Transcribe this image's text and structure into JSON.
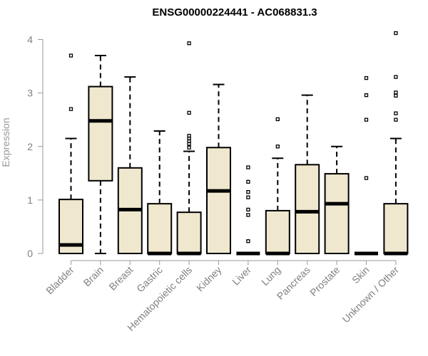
{
  "chart_data": {
    "type": "boxplot",
    "title": "ENSG00000224441 - AC068831.3",
    "xlabel": "",
    "ylabel": "Expression",
    "ylim": [
      0,
      4.1
    ],
    "yticks": [
      0,
      1,
      2,
      3,
      4
    ],
    "grid": false,
    "legend": "none",
    "colors": {
      "box_fill": "#efe8cf",
      "stroke": "#000000",
      "axis": "#999999",
      "label": "#808080"
    },
    "categories": [
      "Bladder",
      "Brain",
      "Breast",
      "Gastric",
      "Hematopoietic cells",
      "Kidney",
      "Liver",
      "Lung",
      "Pancreas",
      "Prostate",
      "Skin",
      "Unknown / Other"
    ],
    "boxes": [
      {
        "category": "Bladder",
        "min": 0,
        "q1": 0,
        "median": 0.16,
        "q3": 1.01,
        "max": 2.15,
        "outliers": [
          2.7,
          3.7
        ]
      },
      {
        "category": "Brain",
        "min": 0,
        "q1": 1.36,
        "median": 2.48,
        "q3": 3.12,
        "max": 3.7,
        "outliers": []
      },
      {
        "category": "Breast",
        "min": 0,
        "q1": 0,
        "median": 0.82,
        "q3": 1.6,
        "max": 3.3,
        "outliers": []
      },
      {
        "category": "Gastric",
        "min": 0,
        "q1": 0,
        "median": 0,
        "q3": 0.93,
        "max": 2.29,
        "outliers": []
      },
      {
        "category": "Hematopoietic cells",
        "min": 0,
        "q1": 0,
        "median": 0,
        "q3": 0.77,
        "max": 1.91,
        "outliers": [
          1.98,
          2.05,
          2.1,
          2.15,
          2.2,
          2.63,
          3.93
        ]
      },
      {
        "category": "Kidney",
        "min": 0,
        "q1": 0,
        "median": 1.17,
        "q3": 1.98,
        "max": 3.16,
        "outliers": []
      },
      {
        "category": "Liver",
        "min": 0,
        "q1": 0,
        "median": 0,
        "q3": 0,
        "max": 0,
        "outliers": [
          0.23,
          0.72,
          0.82,
          1.05,
          1.15,
          1.34,
          1.61
        ]
      },
      {
        "category": "Lung",
        "min": 0,
        "q1": 0,
        "median": 0,
        "q3": 0.8,
        "max": 1.78,
        "outliers": [
          2.0,
          2.51
        ]
      },
      {
        "category": "Pancreas",
        "min": 0,
        "q1": 0,
        "median": 0.78,
        "q3": 1.66,
        "max": 2.96,
        "outliers": []
      },
      {
        "category": "Prostate",
        "min": 0,
        "q1": 0,
        "median": 0.93,
        "q3": 1.49,
        "max": 2.0,
        "outliers": []
      },
      {
        "category": "Skin",
        "min": 0,
        "q1": 0,
        "median": 0,
        "q3": 0,
        "max": 0,
        "outliers": [
          1.41,
          2.5,
          2.96,
          3.28
        ]
      },
      {
        "category": "Unknown / Other",
        "min": 0,
        "q1": 0,
        "median": 0,
        "q3": 0.93,
        "max": 2.15,
        "outliers": [
          2.5,
          2.62,
          2.95,
          3.01,
          3.3,
          4.12
        ]
      }
    ]
  }
}
